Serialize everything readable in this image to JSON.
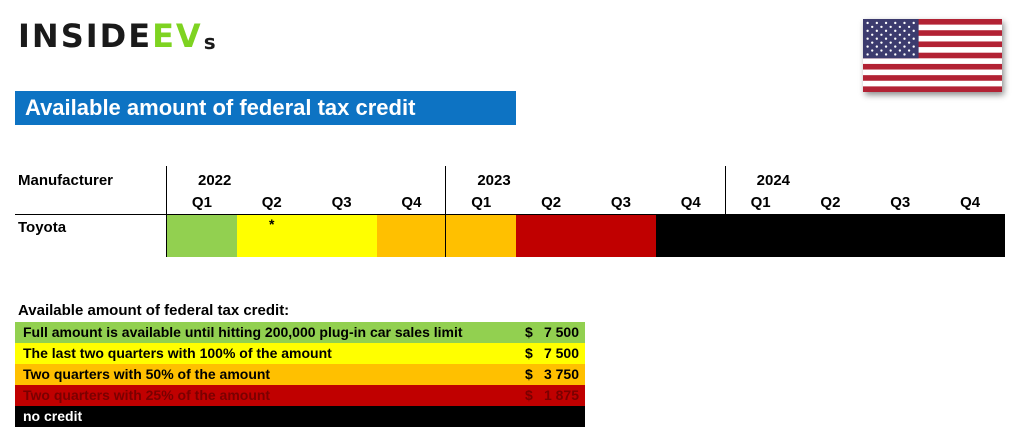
{
  "logo": {
    "inside": "INSIDE",
    "ev": "EV",
    "s": "s"
  },
  "title": "Available amount of federal tax credit",
  "chart_data": {
    "type": "table",
    "row_header": "Manufacturer",
    "years": [
      "2022",
      "2023",
      "2024"
    ],
    "quarters": [
      "Q1",
      "Q2",
      "Q3",
      "Q4",
      "Q1",
      "Q2",
      "Q3",
      "Q4",
      "Q1",
      "Q2",
      "Q3",
      "Q4"
    ],
    "rows": [
      {
        "manufacturer": "Toyota",
        "cells": [
          "full",
          "last_two",
          "last_two",
          "fifty",
          "fifty",
          "twenty_five",
          "twenty_five",
          "none",
          "none",
          "none",
          "none",
          "none"
        ],
        "notes": [
          "",
          "*",
          "",
          "",
          "",
          "",
          "",
          "",
          "",
          "",
          "",
          ""
        ]
      }
    ],
    "colors": {
      "full": "#92d050",
      "last_two": "#ffff00",
      "fifty": "#ffc000",
      "twenty_five": "#c00000",
      "none": "#000000"
    }
  },
  "legend": {
    "title": "Available amount of federal tax credit:",
    "items": [
      {
        "key": "full",
        "label": "Full amount is available until hitting 200,000 plug-in car sales limit",
        "currency": "$",
        "amount": "7 500",
        "text_color": "#000000"
      },
      {
        "key": "last_two",
        "label": "The last two quarters with 100% of the amount",
        "currency": "$",
        "amount": "7 500",
        "text_color": "#000000"
      },
      {
        "key": "fifty",
        "label": "Two quarters with 50% of the amount",
        "currency": "$",
        "amount": "3 750",
        "text_color": "#000000"
      },
      {
        "key": "twenty_five",
        "label": "Two quarters with 25% of the amount",
        "currency": "$",
        "amount": "1 875",
        "text_color": "#7a0000"
      },
      {
        "key": "none",
        "label": "no credit",
        "currency": "",
        "amount": "",
        "text_color": "#ffffff"
      }
    ]
  }
}
